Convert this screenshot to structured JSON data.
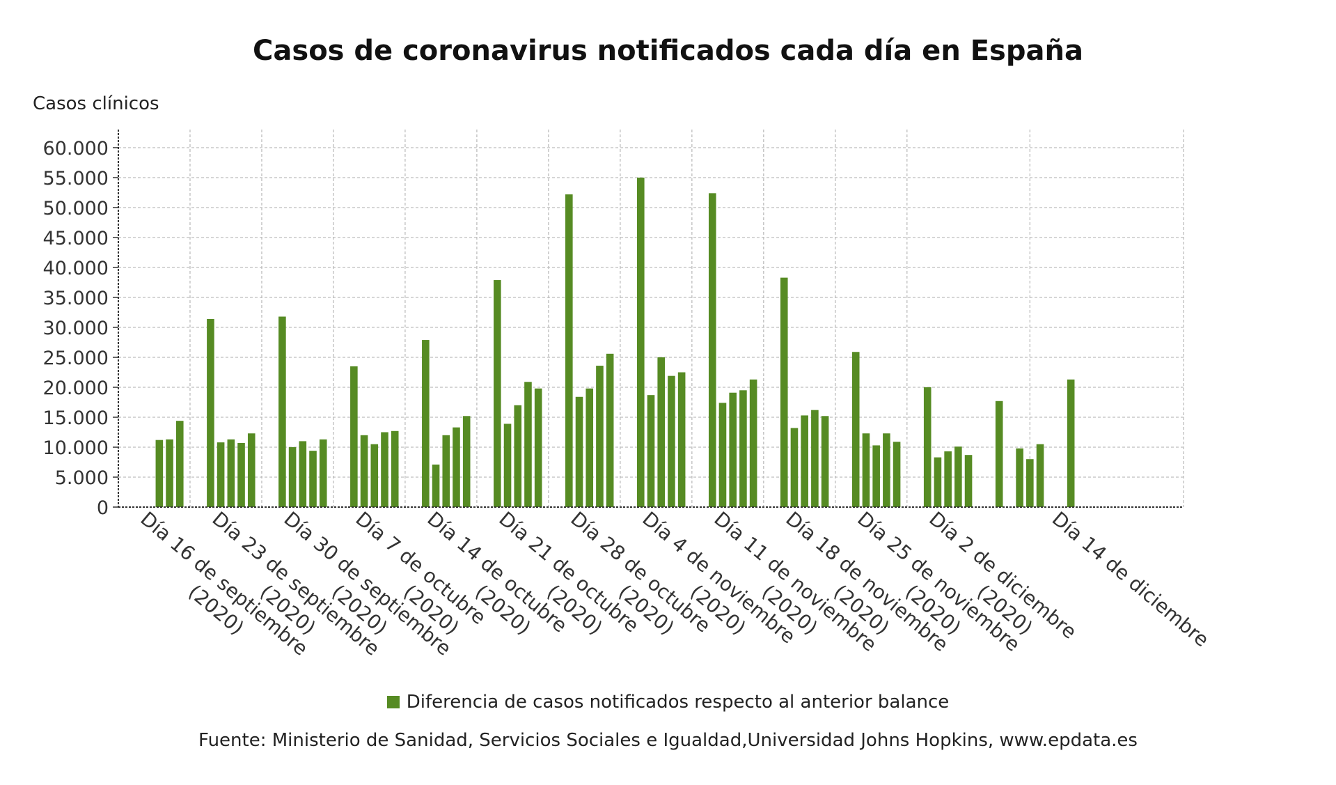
{
  "chart_data": {
    "type": "bar",
    "title": "Casos de coronavirus notificados cada día en España",
    "ylabel": "Casos clínicos",
    "xlabel": "",
    "ylim": [
      0,
      60000
    ],
    "yticks": [
      0,
      5000,
      10000,
      15000,
      20000,
      25000,
      30000,
      35000,
      40000,
      45000,
      50000,
      55000,
      60000
    ],
    "ytick_labels": [
      "0",
      "5.000",
      "10.000",
      "15.000",
      "20.000",
      "25.000",
      "30.000",
      "35.000",
      "40.000",
      "45.000",
      "50.000",
      "55.000",
      "60.000"
    ],
    "x_start": "2020-09-16",
    "x_end": "2020-12-29",
    "x_ticks": [
      {
        "date": "2020-09-16",
        "label": [
          "Día 16 de septiembre",
          "(2020)"
        ]
      },
      {
        "date": "2020-09-23",
        "label": [
          "Día 23 de septiembre",
          "(2020)"
        ]
      },
      {
        "date": "2020-09-30",
        "label": [
          "Día 30 de septiembre",
          "(2020)"
        ]
      },
      {
        "date": "2020-10-07",
        "label": [
          "Día 7 de octubre",
          "(2020)"
        ]
      },
      {
        "date": "2020-10-14",
        "label": [
          "Día 14 de octubre",
          "(2020)"
        ]
      },
      {
        "date": "2020-10-21",
        "label": [
          "Día 21 de octubre",
          "(2020)"
        ]
      },
      {
        "date": "2020-10-28",
        "label": [
          "Día 28 de octubre",
          "(2020)"
        ]
      },
      {
        "date": "2020-11-04",
        "label": [
          "Día 4 de noviembre",
          "(2020)"
        ]
      },
      {
        "date": "2020-11-11",
        "label": [
          "Día 11 de noviembre",
          "(2020)"
        ]
      },
      {
        "date": "2020-11-18",
        "label": [
          "Día 18 de noviembre",
          "(2020)"
        ]
      },
      {
        "date": "2020-11-25",
        "label": [
          "Día 25 de noviembre",
          "(2020)"
        ]
      },
      {
        "date": "2020-12-02",
        "label": [
          "Día 2 de diciembre",
          "(2020)"
        ]
      },
      {
        "date": "2020-12-14",
        "label": [
          "Día 14 de diciembre"
        ]
      }
    ],
    "series": [
      {
        "name": "Diferencia de casos notificados respecto al anterior balance",
        "color": "#568b23",
        "points": [
          {
            "date": "2020-09-20",
            "value": 11200
          },
          {
            "date": "2020-09-21",
            "value": 11300
          },
          {
            "date": "2020-09-22",
            "value": 14400
          },
          {
            "date": "2020-09-25",
            "value": 31400
          },
          {
            "date": "2020-09-26",
            "value": 10800
          },
          {
            "date": "2020-09-27",
            "value": 11300
          },
          {
            "date": "2020-09-28",
            "value": 10700
          },
          {
            "date": "2020-09-29",
            "value": 12300
          },
          {
            "date": "2020-10-02",
            "value": 31800
          },
          {
            "date": "2020-10-03",
            "value": 10000
          },
          {
            "date": "2020-10-04",
            "value": 11000
          },
          {
            "date": "2020-10-05",
            "value": 9400
          },
          {
            "date": "2020-10-06",
            "value": 11300
          },
          {
            "date": "2020-10-09",
            "value": 23500
          },
          {
            "date": "2020-10-10",
            "value": 12000
          },
          {
            "date": "2020-10-11",
            "value": 10500
          },
          {
            "date": "2020-10-12",
            "value": 12500
          },
          {
            "date": "2020-10-13",
            "value": 12700
          },
          {
            "date": "2020-10-16",
            "value": 27900
          },
          {
            "date": "2020-10-17",
            "value": 7100
          },
          {
            "date": "2020-10-18",
            "value": 12000
          },
          {
            "date": "2020-10-19",
            "value": 13300
          },
          {
            "date": "2020-10-20",
            "value": 15200
          },
          {
            "date": "2020-10-23",
            "value": 37900
          },
          {
            "date": "2020-10-24",
            "value": 13900
          },
          {
            "date": "2020-10-25",
            "value": 17000
          },
          {
            "date": "2020-10-26",
            "value": 20900
          },
          {
            "date": "2020-10-27",
            "value": 19800
          },
          {
            "date": "2020-10-30",
            "value": 52200
          },
          {
            "date": "2020-10-31",
            "value": 18400
          },
          {
            "date": "2020-11-01",
            "value": 19800
          },
          {
            "date": "2020-11-02",
            "value": 23600
          },
          {
            "date": "2020-11-03",
            "value": 25600
          },
          {
            "date": "2020-11-06",
            "value": 55000
          },
          {
            "date": "2020-11-07",
            "value": 18700
          },
          {
            "date": "2020-11-08",
            "value": 25000
          },
          {
            "date": "2020-11-09",
            "value": 21900
          },
          {
            "date": "2020-11-10",
            "value": 22500
          },
          {
            "date": "2020-11-13",
            "value": 52400
          },
          {
            "date": "2020-11-14",
            "value": 17400
          },
          {
            "date": "2020-11-15",
            "value": 19100
          },
          {
            "date": "2020-11-16",
            "value": 19500
          },
          {
            "date": "2020-11-17",
            "value": 21300
          },
          {
            "date": "2020-11-20",
            "value": 38300
          },
          {
            "date": "2020-11-21",
            "value": 13200
          },
          {
            "date": "2020-11-22",
            "value": 15300
          },
          {
            "date": "2020-11-23",
            "value": 16200
          },
          {
            "date": "2020-11-24",
            "value": 15200
          },
          {
            "date": "2020-11-27",
            "value": 25900
          },
          {
            "date": "2020-11-28",
            "value": 12300
          },
          {
            "date": "2020-11-29",
            "value": 10300
          },
          {
            "date": "2020-11-30",
            "value": 12300
          },
          {
            "date": "2020-12-01",
            "value": 10900
          },
          {
            "date": "2020-12-04",
            "value": 20000
          },
          {
            "date": "2020-12-05",
            "value": 8300
          },
          {
            "date": "2020-12-06",
            "value": 9300
          },
          {
            "date": "2020-12-07",
            "value": 10100
          },
          {
            "date": "2020-12-08",
            "value": 8700
          },
          {
            "date": "2020-12-11",
            "value": 17700
          },
          {
            "date": "2020-12-13",
            "value": 9800
          },
          {
            "date": "2020-12-14",
            "value": 8000
          },
          {
            "date": "2020-12-15",
            "value": 10500
          },
          {
            "date": "2020-12-18",
            "value": 21300
          }
        ]
      }
    ],
    "grid": true,
    "legend_position": "bottom"
  },
  "source": "Fuente: Ministerio de Sanidad, Servicios Sociales e Igualdad,Universidad Johns Hopkins, www.epdata.es"
}
